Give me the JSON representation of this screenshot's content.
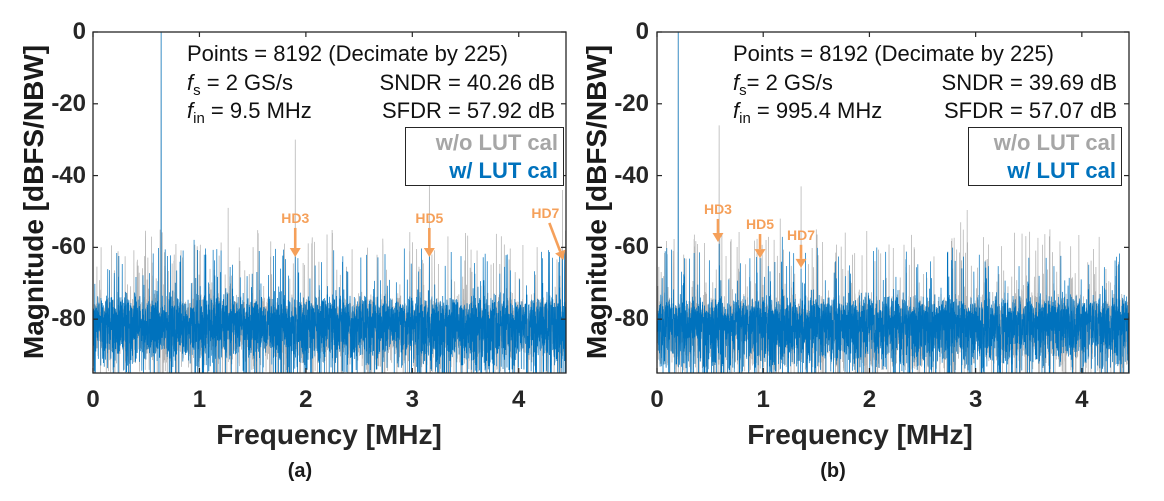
{
  "chart_data": [
    {
      "type": "line",
      "panel_label": "(a)",
      "title": "",
      "xlabel": "Frequency [MHz]",
      "ylabel": "Magnitude [dBFS/NBW]",
      "xlim": [
        0,
        4.444
      ],
      "ylim": [
        -95,
        0
      ],
      "grid": false,
      "fft_bins": 4096,
      "xticks": [
        0,
        1,
        2,
        3,
        4
      ],
      "xtick_labels": [
        "0",
        "1",
        "2",
        "3",
        "4"
      ],
      "yticks": [
        0,
        -20,
        -40,
        -60,
        -80
      ],
      "ytick_labels": [
        "0",
        "-20",
        "-40",
        "-60",
        "-80"
      ],
      "info_text": {
        "points": "Points = 8192 (Decimate by 225)",
        "fs_symbol": "f",
        "fs_sub": "s",
        "fs_rest": " = 2 GS/s",
        "fin_symbol": "f",
        "fin_sub": "in",
        "fin_rest": " = 9.5 MHz",
        "sndr": "SNDR = 40.26 dB",
        "sfdr": "SFDR = 57.92 dB"
      },
      "legend": {
        "placement": "top-right",
        "entries": [
          {
            "label": "w/o LUT cal",
            "color": "#A6A6A6"
          },
          {
            "label": "w/ LUT cal",
            "color": "#0072BD"
          }
        ]
      },
      "series": [
        {
          "name": "w/o LUT cal",
          "color": "#B3B3B3",
          "noise_floor_db": -80,
          "spur_density": 0.035,
          "spur_range_db": [
            -72,
            -55
          ],
          "fundamental": {
            "freq_mhz": 0.64,
            "db": 0
          },
          "spurs": [
            {
              "freq_mhz": 0.55,
              "db": -57
            },
            {
              "freq_mhz": 1.27,
              "db": -49
            },
            {
              "freq_mhz": 1.9,
              "db": -30
            },
            {
              "freq_mhz": 2.25,
              "db": -56
            },
            {
              "freq_mhz": 3.16,
              "db": -40
            },
            {
              "freq_mhz": 3.5,
              "db": -56
            },
            {
              "freq_mhz": 4.41,
              "db": -44
            }
          ]
        },
        {
          "name": "w/ LUT cal",
          "color": "#0072BD",
          "noise_floor_db": -80,
          "spur_density": 0.03,
          "spur_range_db": [
            -72,
            -60
          ],
          "fundamental": {
            "freq_mhz": 0.64,
            "db": 0
          },
          "spurs": [
            {
              "freq_mhz": 0.95,
              "db": -57.92
            },
            {
              "freq_mhz": 1.9,
              "db": -62
            },
            {
              "freq_mhz": 3.16,
              "db": -62
            },
            {
              "freq_mhz": 4.41,
              "db": -63
            }
          ]
        }
      ],
      "annotations": [
        {
          "label": "HD3",
          "color": "#F5A05A",
          "label_freq_mhz": 1.9,
          "label_db": -51.8,
          "tip_freq_mhz": 1.9,
          "tip_db": -62.7
        },
        {
          "label": "HD5",
          "color": "#F5A05A",
          "label_freq_mhz": 3.16,
          "label_db": -51.8,
          "tip_freq_mhz": 3.16,
          "tip_db": -62.7
        },
        {
          "label": "HD7",
          "color": "#F5A05A",
          "label_freq_mhz": 4.25,
          "label_db": -50.4,
          "tip_freq_mhz": 4.42,
          "tip_db": -63.5
        }
      ]
    },
    {
      "type": "line",
      "panel_label": "(b)",
      "title": "",
      "xlabel": "Frequency [MHz]",
      "ylabel": "Magnitude [dBFS/NBW]",
      "xlim": [
        0,
        4.444
      ],
      "ylim": [
        -95,
        0
      ],
      "grid": false,
      "fft_bins": 4096,
      "xticks": [
        0,
        1,
        2,
        3,
        4
      ],
      "xtick_labels": [
        "0",
        "1",
        "2",
        "3",
        "4"
      ],
      "yticks": [
        0,
        -20,
        -40,
        -60,
        -80
      ],
      "ytick_labels": [
        "0",
        "-20",
        "-40",
        "-60",
        "-80"
      ],
      "info_text": {
        "points": "Points = 8192 (Decimate by 225)",
        "fs_symbol": "f",
        "fs_sub": "s",
        "fs_rest": "= 2 GS/s",
        "fin_symbol": "f",
        "fin_sub": "in",
        "fin_rest": " = 995.4 MHz",
        "sndr": "SNDR = 39.69 dB",
        "sfdr": "SFDR = 57.07 dB"
      },
      "legend": {
        "placement": "top-right",
        "entries": [
          {
            "label": "w/o LUT cal",
            "color": "#A6A6A6"
          },
          {
            "label": "w/ LUT cal",
            "color": "#0072BD"
          }
        ]
      },
      "series": [
        {
          "name": "w/o LUT cal",
          "color": "#B3B3B3",
          "noise_floor_db": -80,
          "spur_density": 0.035,
          "spur_range_db": [
            -72,
            -55
          ],
          "fundamental": {
            "freq_mhz": 0.2,
            "db": 0
          },
          "spurs": [
            {
              "freq_mhz": 0.585,
              "db": -26
            },
            {
              "freq_mhz": 1.16,
              "db": -52
            },
            {
              "freq_mhz": 1.356,
              "db": -43
            },
            {
              "freq_mhz": 1.5,
              "db": -55
            },
            {
              "freq_mhz": 2.86,
              "db": -53
            },
            {
              "freq_mhz": 2.92,
              "db": -49.6
            },
            {
              "freq_mhz": 3.7,
              "db": -55
            }
          ]
        },
        {
          "name": "w/ LUT cal",
          "color": "#0072BD",
          "noise_floor_db": -80,
          "spur_density": 0.03,
          "spur_range_db": [
            -72,
            -60
          ],
          "fundamental": {
            "freq_mhz": 0.2,
            "db": 0
          },
          "spurs": [
            {
              "freq_mhz": 0.585,
              "db": -59
            },
            {
              "freq_mhz": 0.97,
              "db": -62
            },
            {
              "freq_mhz": 1.18,
              "db": -57.07
            },
            {
              "freq_mhz": 1.356,
              "db": -66
            }
          ]
        }
      ],
      "annotations": [
        {
          "label": "HD3",
          "color": "#F5A05A",
          "label_freq_mhz": 0.574,
          "label_db": -49.3,
          "tip_freq_mhz": 0.574,
          "tip_db": -58.5
        },
        {
          "label": "HD5",
          "color": "#F5A05A",
          "label_freq_mhz": 0.97,
          "label_db": -53.5,
          "tip_freq_mhz": 0.97,
          "tip_db": -63
        },
        {
          "label": "HD7",
          "color": "#F5A05A",
          "label_freq_mhz": 1.356,
          "label_db": -56.5,
          "tip_freq_mhz": 1.356,
          "tip_db": -65.7
        }
      ]
    }
  ]
}
